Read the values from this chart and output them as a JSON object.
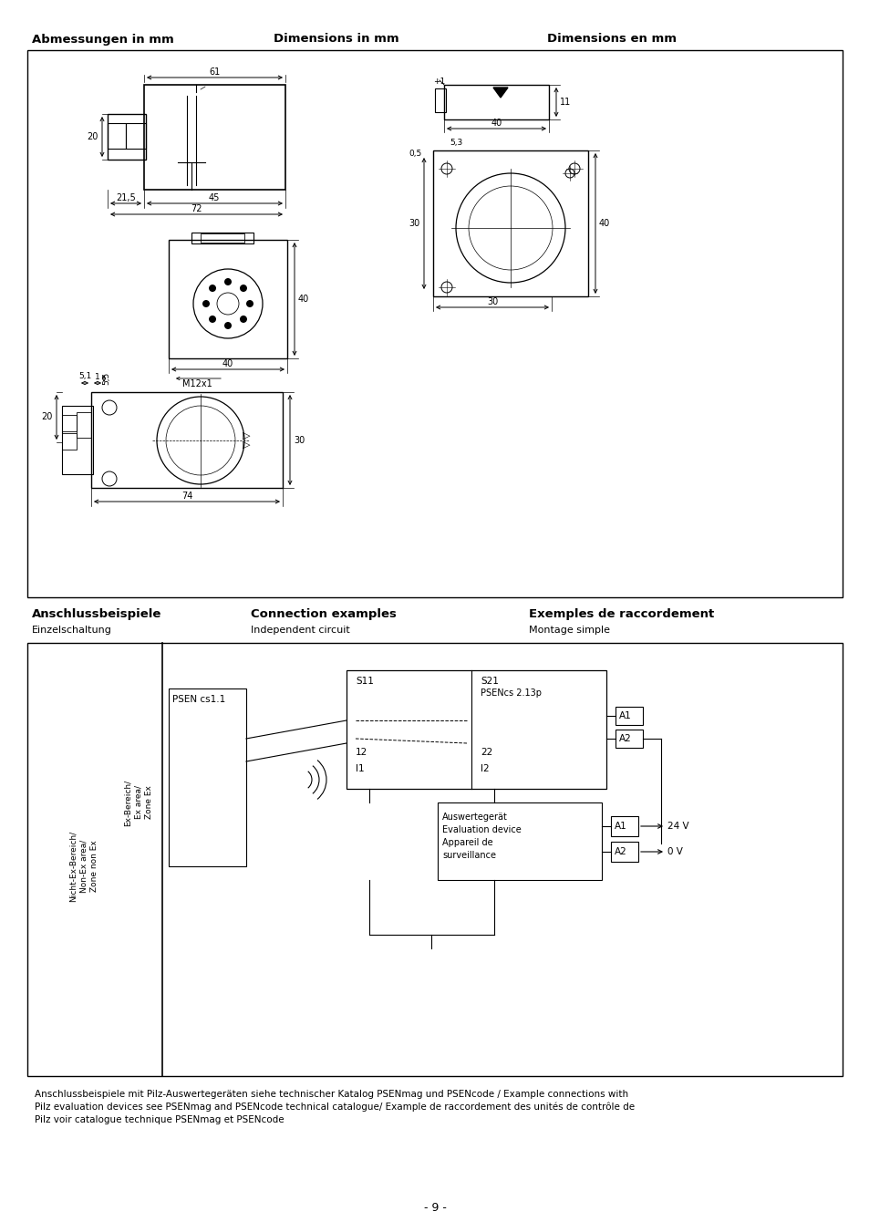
{
  "page_title_left": "Abmessungen in mm",
  "page_title_mid": "Dimensions in mm",
  "page_title_right": "Dimensions en mm",
  "section2_title_left": "Anschlussbeispiele",
  "section2_sub_left": "Einzelschaltung",
  "section2_title_mid": "Connection examples",
  "section2_sub_mid": "Independent circuit",
  "section2_title_right": "Exemples de raccordement",
  "section2_sub_right": "Montage simple",
  "page_number": "- 9 -",
  "footer_text": "Anschlussbeispiele mit Pilz-Auswertegeräten siehe technischer Katalog PSENmag und PSENcode / Example connections with Pilz evaluation devices see PSENmag and PSENcode technical catalogue/ Example de raccordement des unités de contrôle de Pilz voir catalogue technique PSENmag et PSENcode",
  "bg_color": "#ffffff"
}
